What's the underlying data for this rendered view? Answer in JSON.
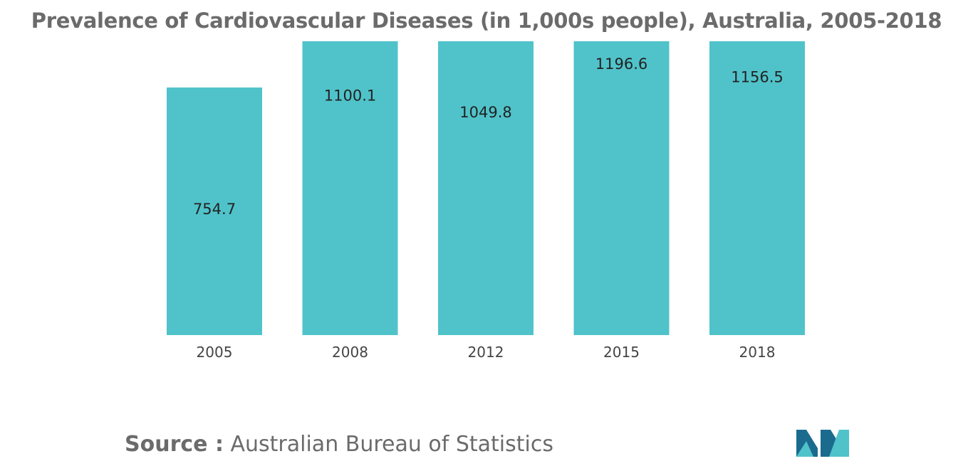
{
  "title": "Prevalence of Cardiovascular Diseases (in 1,000s people), Australia, 2005-2018",
  "source": {
    "label": "Source :",
    "text": " Australian Bureau of Statistics"
  },
  "colors": {
    "bar": "#50c3ca",
    "logo_dark": "#1b6b8f",
    "logo_light": "#50c3ca"
  },
  "chart_data": {
    "type": "bar",
    "title": "Prevalence of Cardiovascular Diseases (in 1,000s people), Australia, 2005-2018",
    "categories": [
      "2005",
      "2008",
      "2012",
      "2015",
      "2018"
    ],
    "values": [
      754.7,
      1100.1,
      1049.8,
      1196.6,
      1156.5
    ],
    "data_labels": [
      "754.7",
      "1100.1",
      "1049.8",
      "1196.6",
      "1156.5"
    ],
    "xlabel": "",
    "ylabel": "",
    "ylim": [
      0,
      1000
    ],
    "grid": false,
    "legend": "none",
    "axis_y_visible": false,
    "bars_clipped_at_top": true
  }
}
